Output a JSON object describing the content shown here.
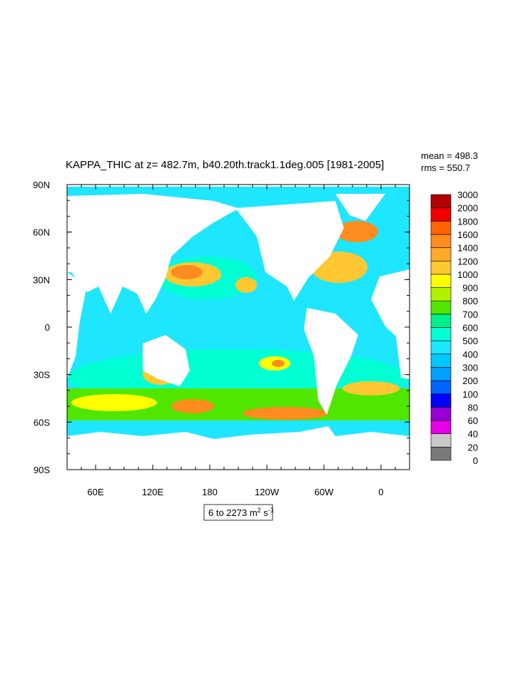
{
  "title": "KAPPA_THIC at z= 482.7m, b40.20th.track1.1deg.005 [1981-2005]",
  "stats": {
    "mean": "mean = 498.3",
    "rms": "rms = 550.7"
  },
  "lat_labels": [
    "90N",
    "60N",
    "30N",
    "0",
    "30S",
    "60S",
    "90S"
  ],
  "lon_labels": [
    "60E",
    "120E",
    "180",
    "120W",
    "60W",
    "0"
  ],
  "colorbar": {
    "levels": [
      0,
      20,
      40,
      60,
      80,
      100,
      200,
      300,
      400,
      500,
      600,
      700,
      800,
      900,
      1000,
      1200,
      1400,
      1600,
      1800,
      2000,
      3000
    ],
    "colors": [
      "#7a7a7a",
      "#c8c8c8",
      "#e600e6",
      "#9600d2",
      "#0000ff",
      "#0064ff",
      "#00a0ff",
      "#00c8ff",
      "#1ee6ff",
      "#00ffd2",
      "#00f08c",
      "#50e600",
      "#b4f000",
      "#ffff00",
      "#ffc832",
      "#ffaa28",
      "#ff8c1e",
      "#ff6400",
      "#f00000",
      "#b40000"
    ]
  },
  "range_label": {
    "text": "6 to 2273 m",
    "exp1": "2",
    "unit2": " s",
    "exp2": "-1"
  }
}
